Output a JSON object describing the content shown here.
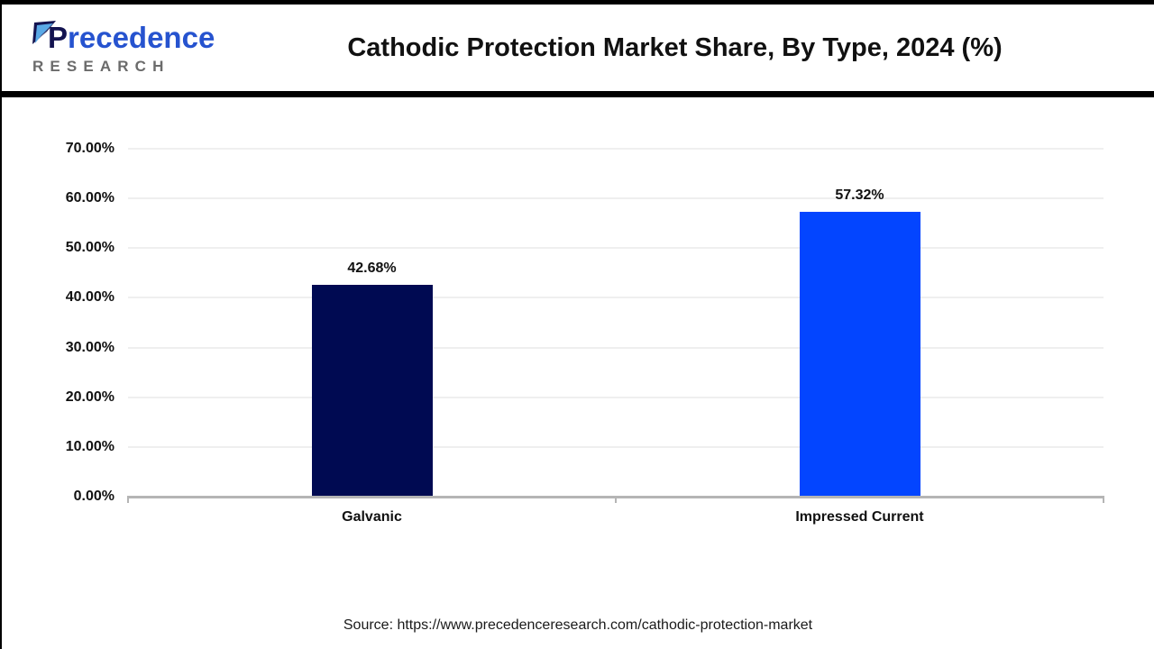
{
  "header": {
    "logo": {
      "brand_initial": "P",
      "brand_rest": "recedence",
      "sub": "RESEARCH"
    },
    "title": "Cathodic Protection Market Share, By Type, 2024 (%)"
  },
  "chart_data": {
    "type": "bar",
    "title": "Cathodic Protection Market Share, By Type, 2024 (%)",
    "categories": [
      "Galvanic",
      "Impressed Current"
    ],
    "values": [
      42.68,
      57.32
    ],
    "value_labels": [
      "42.68%",
      "57.32%"
    ],
    "bar_colors": [
      "#000a52",
      "#0345ff"
    ],
    "xlabel": "",
    "ylabel": "",
    "ylim": [
      0,
      70
    ],
    "yticks": [
      0,
      10,
      20,
      30,
      40,
      50,
      60,
      70
    ],
    "ytick_labels": [
      "0.00%",
      "10.00%",
      "20.00%",
      "30.00%",
      "40.00%",
      "50.00%",
      "60.00%",
      "70.00%"
    ],
    "grid": "horizontal",
    "legend": "none"
  },
  "footer": {
    "source": "Source: https://www.precedenceresearch.com/cathodic-protection-market"
  },
  "colors": {
    "bar_galvanic": "#000a52",
    "bar_impressed": "#0345ff",
    "gridline": "#efefef",
    "axis": "#b5b5b5",
    "logo_blue": "#2653cf",
    "logo_navy": "#131350",
    "logo_gray": "#6b6b6b"
  }
}
